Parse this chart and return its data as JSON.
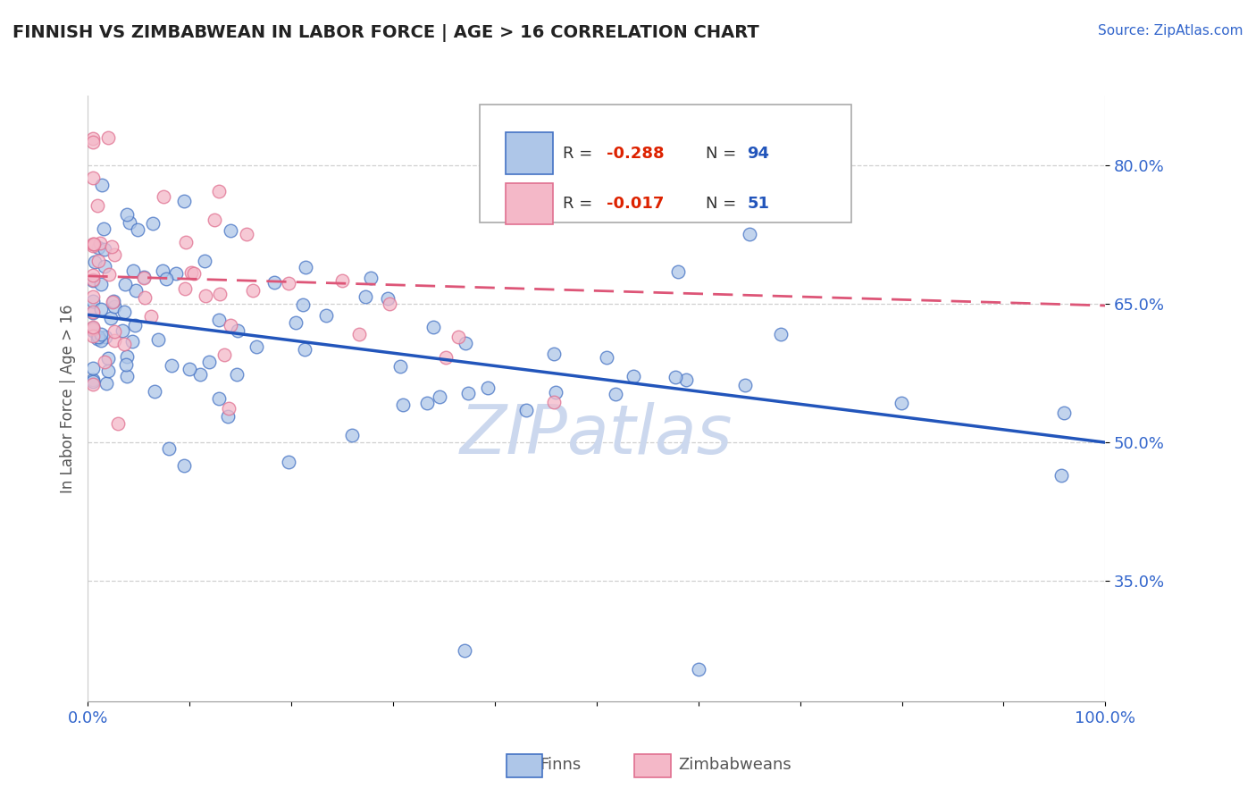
{
  "title": "FINNISH VS ZIMBABWEAN IN LABOR FORCE | AGE > 16 CORRELATION CHART",
  "source_text": "Source: ZipAtlas.com",
  "ylabel": "In Labor Force | Age > 16",
  "xlim": [
    0.0,
    1.0
  ],
  "ylim": [
    0.22,
    0.875
  ],
  "yticks": [
    0.35,
    0.5,
    0.65,
    0.8
  ],
  "ytick_labels": [
    "35.0%",
    "50.0%",
    "65.0%",
    "80.0%"
  ],
  "finn_color": "#aec6e8",
  "finn_edge_color": "#4472c4",
  "zim_color": "#f4b8c8",
  "zim_edge_color": "#e07090",
  "finn_R": -0.288,
  "finn_N": 94,
  "zim_R": -0.017,
  "zim_N": 51,
  "finn_line_color": "#2255bb",
  "zim_line_color": "#dd5577",
  "finn_line_start_y": 0.638,
  "finn_line_end_y": 0.5,
  "zim_line_start_y": 0.68,
  "zim_line_end_y": 0.648,
  "background_color": "#ffffff",
  "grid_color": "#d0d0d0",
  "title_color": "#222222",
  "legend_R_color": "#dd2200",
  "legend_N_color": "#2255bb",
  "watermark_color": "#ccd8ee"
}
